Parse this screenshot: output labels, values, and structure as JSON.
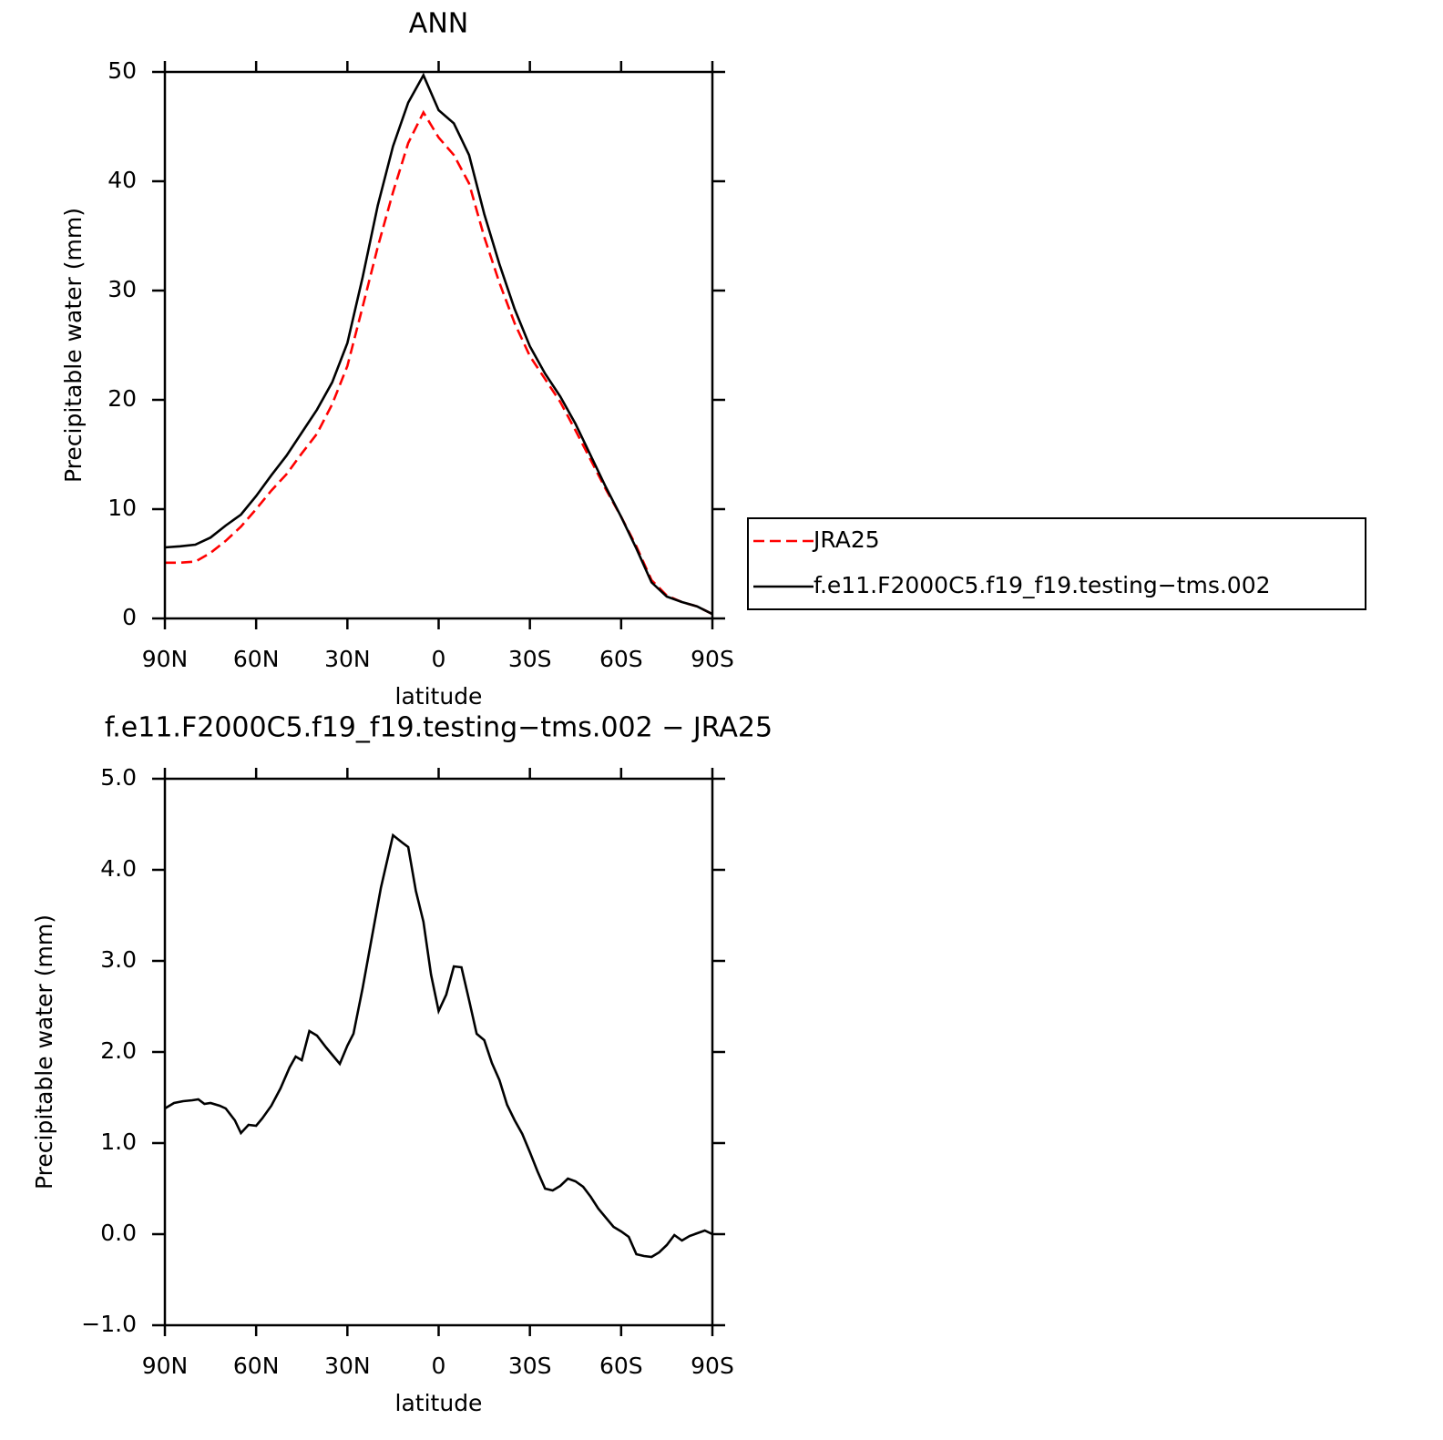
{
  "chart_data": [
    {
      "type": "line",
      "title": "ANN",
      "ylabel": "Precipitable water (mm)",
      "xlabel": "latitude",
      "x": [
        90,
        85,
        80,
        75,
        70,
        65,
        60,
        55,
        50,
        45,
        40,
        35,
        30,
        25,
        20,
        15,
        10,
        5,
        0,
        -5,
        -10,
        -15,
        -20,
        -25,
        -30,
        -35,
        -40,
        -45,
        -50,
        -55,
        -60,
        -65,
        -70,
        -75,
        -80,
        -85,
        -90
      ],
      "series": [
        {
          "name": "JRA25",
          "color": "#ff0000",
          "style": "dashed",
          "values": [
            5.1,
            5.1,
            5.2,
            6.0,
            7.1,
            8.4,
            10.0,
            11.7,
            13.2,
            15.1,
            16.9,
            19.6,
            23.1,
            28.5,
            34.0,
            39.0,
            43.5,
            46.3,
            44.0,
            42.4,
            39.8,
            34.9,
            30.7,
            27.0,
            24.0,
            21.9,
            19.8,
            17.2,
            14.5,
            11.8,
            9.3,
            6.6,
            3.5,
            2.1,
            1.5,
            1.1,
            0.4
          ]
        },
        {
          "name": "f.e11.F2000C5.f19_f19.testing−tms.002",
          "color": "#000000",
          "style": "solid",
          "values": [
            6.5,
            6.6,
            6.75,
            7.4,
            8.5,
            9.5,
            11.2,
            13.1,
            14.9,
            17.0,
            19.1,
            21.6,
            25.2,
            31.2,
            37.8,
            43.2,
            47.2,
            49.7,
            46.5,
            45.3,
            42.4,
            37.0,
            32.4,
            28.3,
            24.9,
            22.4,
            20.3,
            17.8,
            14.9,
            12.0,
            9.3,
            6.4,
            3.3,
            2.0,
            1.5,
            1.1,
            0.4
          ]
        }
      ],
      "xlim": [
        90,
        -90
      ],
      "xticks": [
        {
          "value": 90,
          "label": "90N"
        },
        {
          "value": 60,
          "label": "60N"
        },
        {
          "value": 30,
          "label": "30N"
        },
        0,
        {
          "value": -30,
          "label": "30S"
        },
        {
          "value": -60,
          "label": "60S"
        },
        {
          "value": -90,
          "label": "90S"
        }
      ],
      "ylim": [
        0,
        50
      ],
      "yticks": [
        0,
        10,
        20,
        30,
        40,
        50
      ],
      "legend": "right"
    },
    {
      "type": "line",
      "title": "f.e11.F2000C5.f19_f19.testing−tms.002 − JRA25",
      "ylabel": "Precipitable water (mm)",
      "xlabel": "latitude",
      "x": [
        90,
        87,
        84,
        81,
        79,
        77,
        75,
        72,
        70,
        67,
        65,
        62.5,
        60,
        58,
        55,
        52,
        49,
        47,
        45,
        42.5,
        40,
        37,
        35,
        32.5,
        30,
        28,
        25,
        22,
        19,
        15,
        12,
        10,
        7.5,
        5,
        2.5,
        0,
        -2.5,
        -5,
        -7.5,
        -10,
        -12.5,
        -15,
        -17.5,
        -20,
        -22.5,
        -25,
        -27.5,
        -30,
        -32.5,
        -35,
        -37.5,
        -40,
        -42.5,
        -45,
        -47.5,
        -50,
        -52.5,
        -55,
        -57.5,
        -60,
        -62.5,
        -65,
        -67.5,
        -70,
        -72.5,
        -75,
        -77.5,
        -80,
        -82.5,
        -85,
        -87.5,
        -90
      ],
      "series": [
        {
          "color": "#000000",
          "style": "solid",
          "values": [
            1.38,
            1.44,
            1.46,
            1.47,
            1.48,
            1.43,
            1.44,
            1.41,
            1.38,
            1.25,
            1.11,
            1.2,
            1.19,
            1.27,
            1.41,
            1.6,
            1.83,
            1.95,
            1.91,
            2.23,
            2.18,
            2.05,
            1.97,
            1.87,
            2.07,
            2.2,
            2.7,
            3.25,
            3.8,
            4.38,
            4.3,
            4.25,
            3.77,
            3.43,
            2.85,
            2.45,
            2.63,
            2.94,
            2.93,
            2.57,
            2.2,
            2.13,
            1.88,
            1.69,
            1.42,
            1.25,
            1.1,
            0.9,
            0.69,
            0.5,
            0.48,
            0.53,
            0.61,
            0.58,
            0.52,
            0.41,
            0.28,
            0.18,
            0.08,
            0.03,
            -0.03,
            -0.22,
            -0.24,
            -0.25,
            -0.2,
            -0.12,
            -0.01,
            -0.07,
            -0.02,
            0.01,
            0.04,
            0
          ]
        }
      ],
      "xlim": [
        90,
        -90
      ],
      "xticks": [
        {
          "value": 90,
          "label": "90N"
        },
        {
          "value": 60,
          "label": "60N"
        },
        {
          "value": 30,
          "label": "30N"
        },
        0,
        {
          "value": -30,
          "label": "30S"
        },
        {
          "value": -60,
          "label": "60S"
        },
        {
          "value": -90,
          "label": "90S"
        }
      ],
      "ylim": [
        -1,
        5
      ],
      "yticks": [
        {
          "value": -1,
          "label": "−1.0"
        },
        {
          "value": 0,
          "label": "0.0"
        },
        {
          "value": 1,
          "label": "1.0"
        },
        {
          "value": 2,
          "label": "2.0"
        },
        {
          "value": 3,
          "label": "3.0"
        },
        {
          "value": 4,
          "label": "4.0"
        },
        {
          "value": 5,
          "label": "5.0"
        }
      ]
    }
  ]
}
